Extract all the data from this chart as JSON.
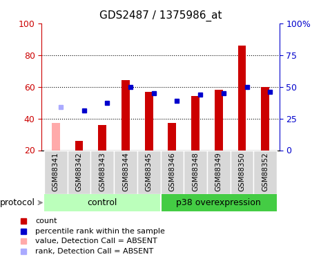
{
  "title": "GDS2487 / 1375986_at",
  "samples": [
    "GSM88341",
    "GSM88342",
    "GSM88343",
    "GSM88344",
    "GSM88345",
    "GSM88346",
    "GSM88348",
    "GSM88349",
    "GSM88350",
    "GSM88352"
  ],
  "count_values": [
    37,
    26,
    36,
    64,
    57,
    37,
    54,
    58,
    86,
    60
  ],
  "rank_values": [
    47,
    45,
    50,
    60,
    56,
    51,
    55,
    56,
    60,
    57
  ],
  "absent_mask": [
    true,
    false,
    false,
    false,
    false,
    false,
    false,
    false,
    false,
    false
  ],
  "count_color": "#cc0000",
  "count_absent_color": "#ffaaaa",
  "rank_color": "#0000cc",
  "rank_absent_color": "#aaaaff",
  "ylim_left": [
    20,
    100
  ],
  "ylim_right": [
    0,
    100
  ],
  "yticks_left": [
    20,
    40,
    60,
    80,
    100
  ],
  "yticks_right": [
    0,
    25,
    50,
    75,
    100
  ],
  "ytick_labels_right": [
    "0",
    "25",
    "50",
    "75",
    "100%"
  ],
  "control_n": 5,
  "control_label": "control",
  "p38_label": "p38 overexpression",
  "protocol_label": "protocol",
  "control_color": "#bbffbb",
  "p38_color": "#44cc44",
  "legend_items": [
    {
      "label": "count",
      "color": "#cc0000"
    },
    {
      "label": "percentile rank within the sample",
      "color": "#0000cc"
    },
    {
      "label": "value, Detection Call = ABSENT",
      "color": "#ffaaaa"
    },
    {
      "label": "rank, Detection Call = ABSENT",
      "color": "#aaaaff"
    }
  ],
  "background_color": "#ffffff",
  "bar_width": 0.35
}
